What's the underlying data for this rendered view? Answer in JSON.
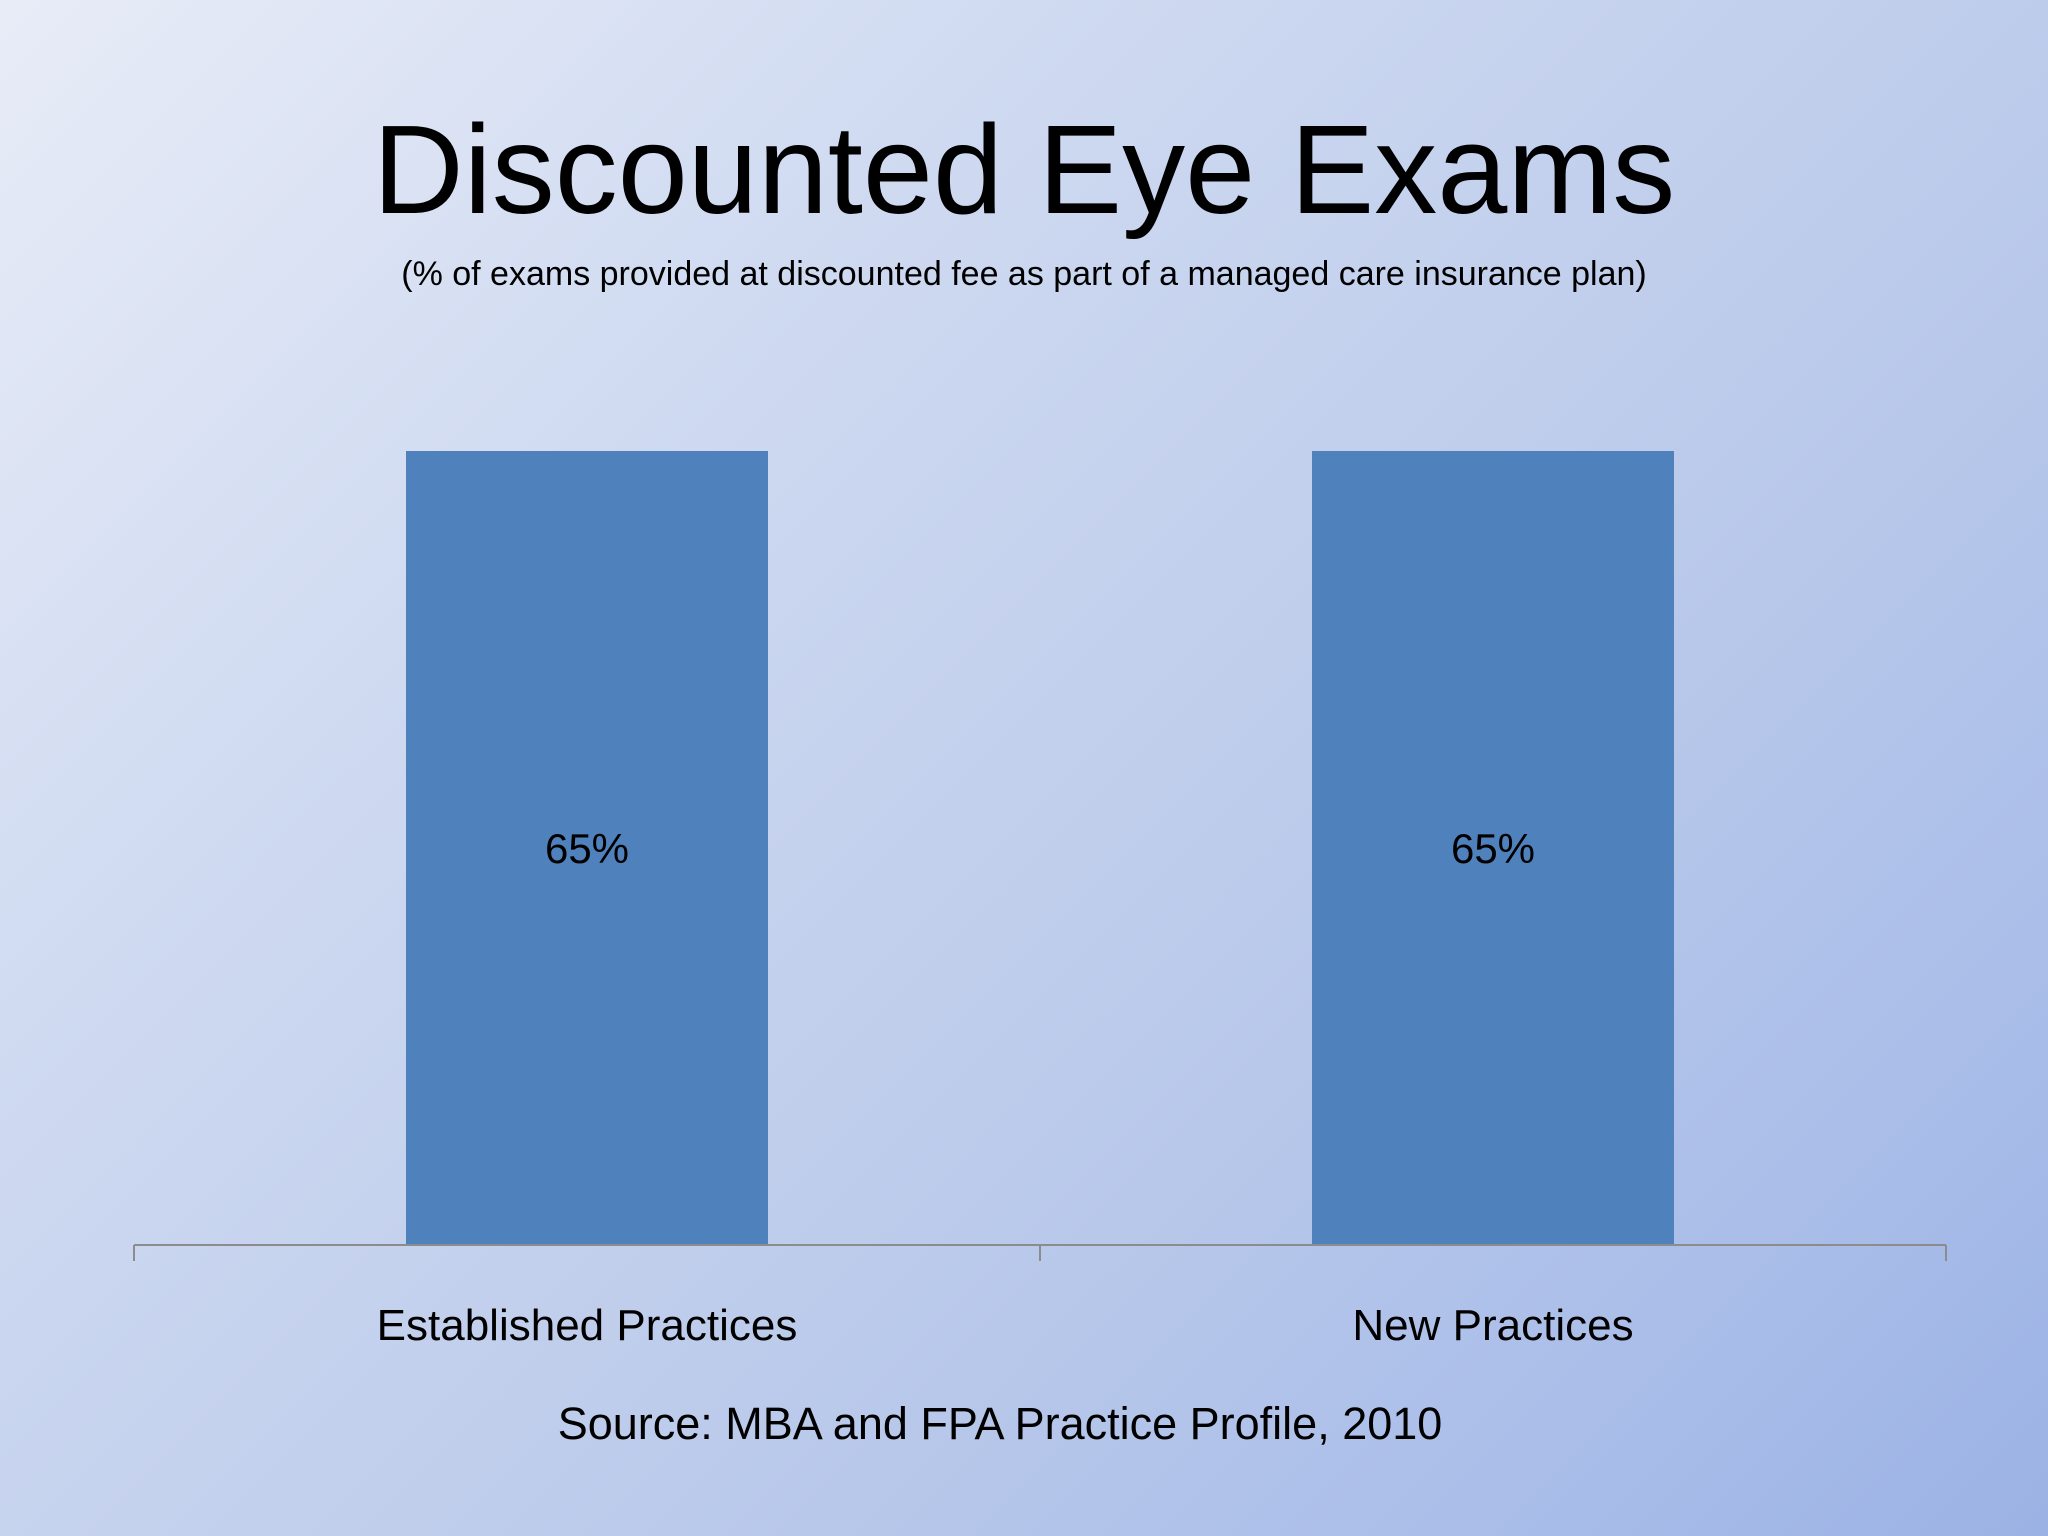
{
  "slide": {
    "title": "Discounted Eye Exams",
    "subtitle": "(% of exams provided at discounted fee as part of a managed care insurance plan)",
    "source": "Source: MBA and FPA Practice Profile, 2010"
  },
  "colors": {
    "bar": "#4f81bd",
    "axis": "#8c8c8c",
    "text": "#000000"
  },
  "chart_data": {
    "type": "bar",
    "title": "Discounted Eye Exams",
    "subtitle": "(% of exams provided at discounted fee as part of a managed care insurance plan)",
    "categories": [
      "Established Practices",
      "New Practices"
    ],
    "values": [
      65,
      65
    ],
    "data_labels": [
      "65%",
      "65%"
    ],
    "unit": "%",
    "xlabel": "",
    "ylabel": "",
    "ylim": [
      0,
      65
    ],
    "grid": false,
    "legend": "none",
    "value_axis_visible": false
  }
}
